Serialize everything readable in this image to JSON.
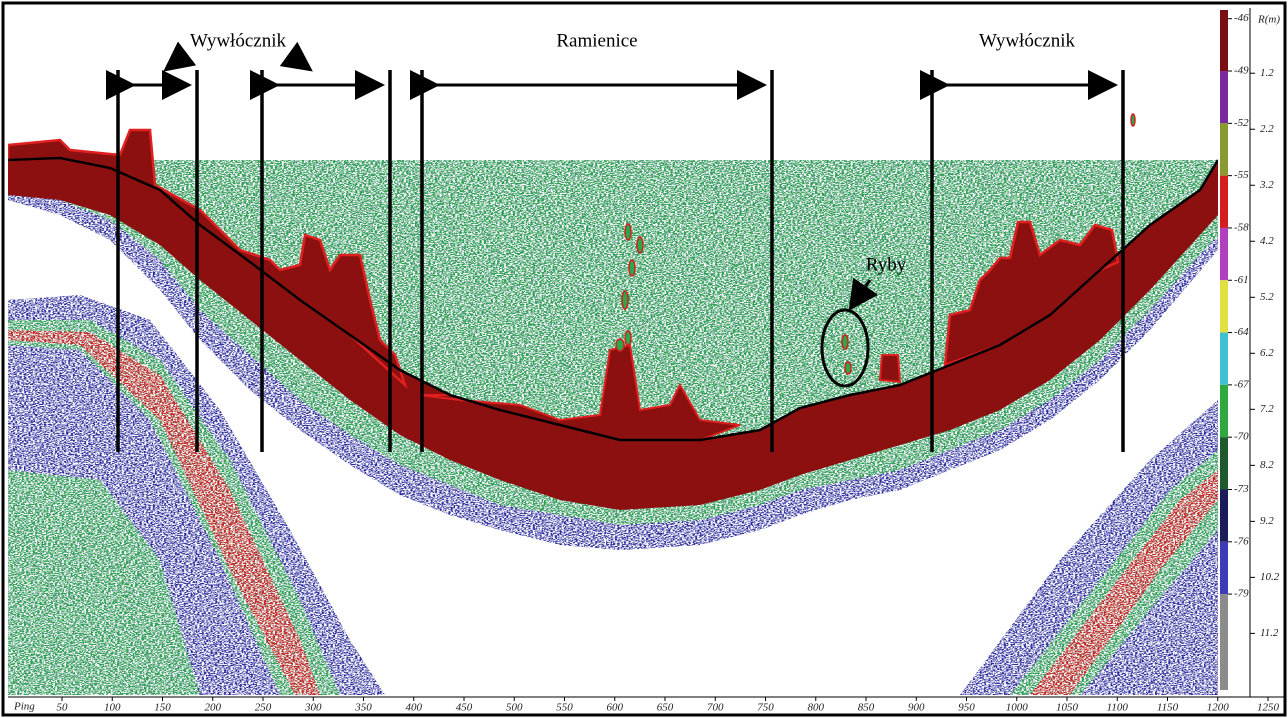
{
  "chart_data": {
    "type": "echogram",
    "x_label": "Ping",
    "y_label": "R(m)",
    "annotations": [
      "Wywłócznik",
      "Ramienice",
      "Wywłócznik",
      "Ryby"
    ],
    "xlim": [
      0,
      1250
    ],
    "xticks": [
      50,
      100,
      150,
      200,
      250,
      300,
      350,
      400,
      450,
      500,
      550,
      600,
      650,
      700,
      750,
      800,
      850,
      900,
      950,
      1000,
      1050,
      1100,
      1150,
      1200,
      1250
    ],
    "ylim": [
      0,
      12.3
    ],
    "yticks": [
      1.2,
      2.2,
      3.2,
      4.2,
      5.2,
      6.2,
      7.2,
      8.2,
      9.2,
      10.2,
      11.2
    ],
    "colorbar": {
      "clim": [
        -45.5,
        -84.5
      ],
      "ticks": [
        -46,
        -49,
        -52,
        -55,
        -58,
        -61,
        -64,
        -67,
        -70,
        -73,
        -76,
        -79
      ],
      "colors": [
        "#7a0e10",
        "#7a2a9a",
        "#8a9a30",
        "#d41e1e",
        "#b040c0",
        "#e2e040",
        "#40c0d0",
        "#30a840",
        "#1e5a2e",
        "#1c1c5a",
        "#3c3cb8",
        "#8c8c8c"
      ]
    }
  }
}
